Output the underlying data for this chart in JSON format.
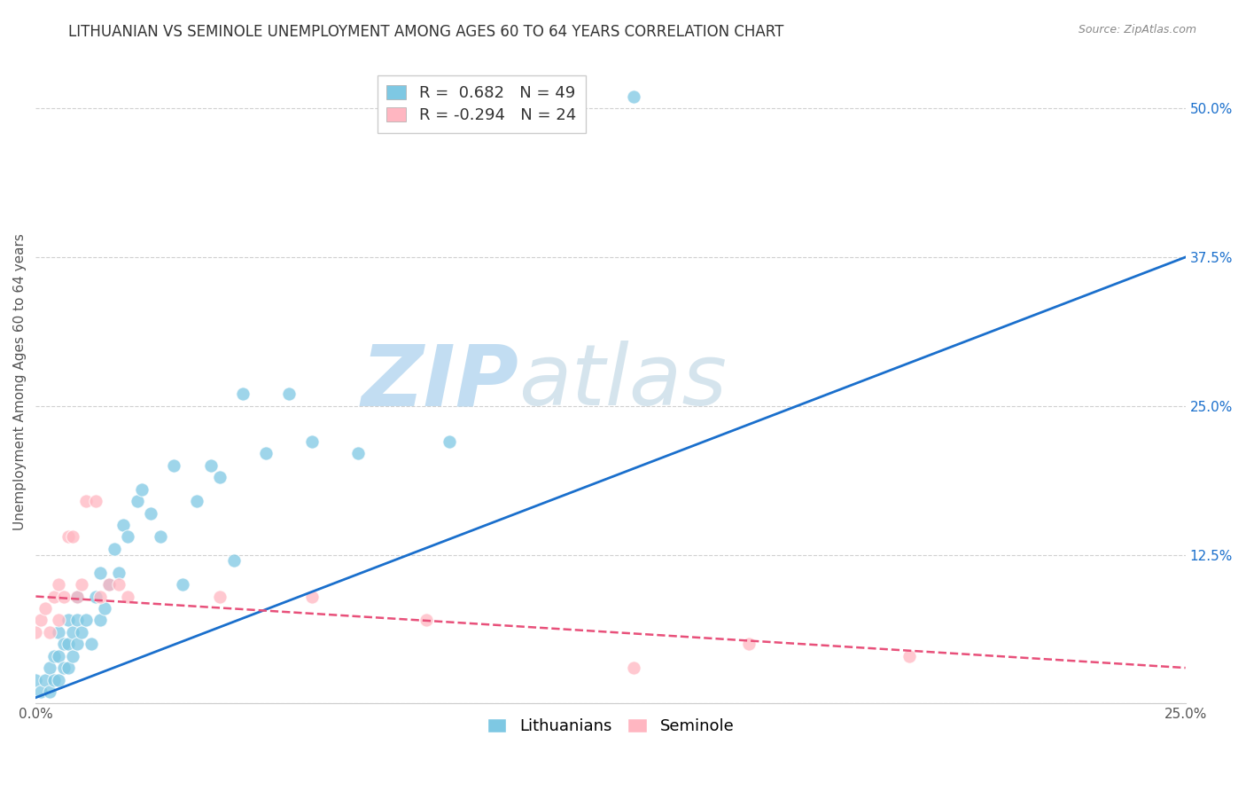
{
  "title": "LITHUANIAN VS SEMINOLE UNEMPLOYMENT AMONG AGES 60 TO 64 YEARS CORRELATION CHART",
  "source": "Source: ZipAtlas.com",
  "ylabel": "Unemployment Among Ages 60 to 64 years",
  "xlabel": "",
  "xlim": [
    0.0,
    0.25
  ],
  "ylim": [
    0.0,
    0.54
  ],
  "yticks": [
    0.0,
    0.125,
    0.25,
    0.375,
    0.5
  ],
  "ytick_labels_right": [
    "",
    "12.5%",
    "25.0%",
    "37.5%",
    "50.0%"
  ],
  "xticks": [
    0.0,
    0.05,
    0.1,
    0.15,
    0.2,
    0.25
  ],
  "xtick_labels": [
    "0.0%",
    "",
    "",
    "",
    "",
    "25.0%"
  ],
  "background_color": "#ffffff",
  "watermark_zip": "ZIP",
  "watermark_atlas": "atlas",
  "blue_color": "#7ec8e3",
  "pink_color": "#ffb6c1",
  "blue_line_color": "#1a6fcc",
  "pink_line_color": "#e8507a",
  "blue_R": 0.682,
  "blue_N": 49,
  "pink_R": -0.294,
  "pink_N": 24,
  "blue_scatter_x": [
    0.0,
    0.001,
    0.002,
    0.003,
    0.003,
    0.004,
    0.004,
    0.005,
    0.005,
    0.005,
    0.006,
    0.006,
    0.007,
    0.007,
    0.007,
    0.008,
    0.008,
    0.009,
    0.009,
    0.009,
    0.01,
    0.011,
    0.012,
    0.013,
    0.014,
    0.014,
    0.015,
    0.016,
    0.017,
    0.018,
    0.019,
    0.02,
    0.022,
    0.023,
    0.025,
    0.027,
    0.03,
    0.032,
    0.035,
    0.038,
    0.04,
    0.043,
    0.045,
    0.05,
    0.055,
    0.06,
    0.07,
    0.09,
    0.13
  ],
  "blue_scatter_y": [
    0.02,
    0.01,
    0.02,
    0.01,
    0.03,
    0.02,
    0.04,
    0.02,
    0.04,
    0.06,
    0.03,
    0.05,
    0.03,
    0.05,
    0.07,
    0.04,
    0.06,
    0.05,
    0.07,
    0.09,
    0.06,
    0.07,
    0.05,
    0.09,
    0.07,
    0.11,
    0.08,
    0.1,
    0.13,
    0.11,
    0.15,
    0.14,
    0.17,
    0.18,
    0.16,
    0.14,
    0.2,
    0.1,
    0.17,
    0.2,
    0.19,
    0.12,
    0.26,
    0.21,
    0.26,
    0.22,
    0.21,
    0.22,
    0.51
  ],
  "pink_scatter_x": [
    0.0,
    0.001,
    0.002,
    0.003,
    0.004,
    0.005,
    0.005,
    0.006,
    0.007,
    0.008,
    0.009,
    0.01,
    0.011,
    0.013,
    0.014,
    0.016,
    0.018,
    0.02,
    0.04,
    0.06,
    0.085,
    0.13,
    0.155,
    0.19
  ],
  "pink_scatter_y": [
    0.06,
    0.07,
    0.08,
    0.06,
    0.09,
    0.07,
    0.1,
    0.09,
    0.14,
    0.14,
    0.09,
    0.1,
    0.17,
    0.17,
    0.09,
    0.1,
    0.1,
    0.09,
    0.09,
    0.09,
    0.07,
    0.03,
    0.05,
    0.04
  ],
  "blue_line_x": [
    0.0,
    0.25
  ],
  "blue_line_y": [
    0.005,
    0.375
  ],
  "pink_line_x": [
    0.0,
    0.25
  ],
  "pink_line_y": [
    0.09,
    0.03
  ],
  "grid_color": "#d0d0d0",
  "title_fontsize": 12,
  "label_fontsize": 11,
  "tick_fontsize": 11,
  "legend_fontsize": 13,
  "watermark_zip_color": "#b8d8f0",
  "watermark_atlas_color": "#c8dce8",
  "watermark_fontsize": 70
}
